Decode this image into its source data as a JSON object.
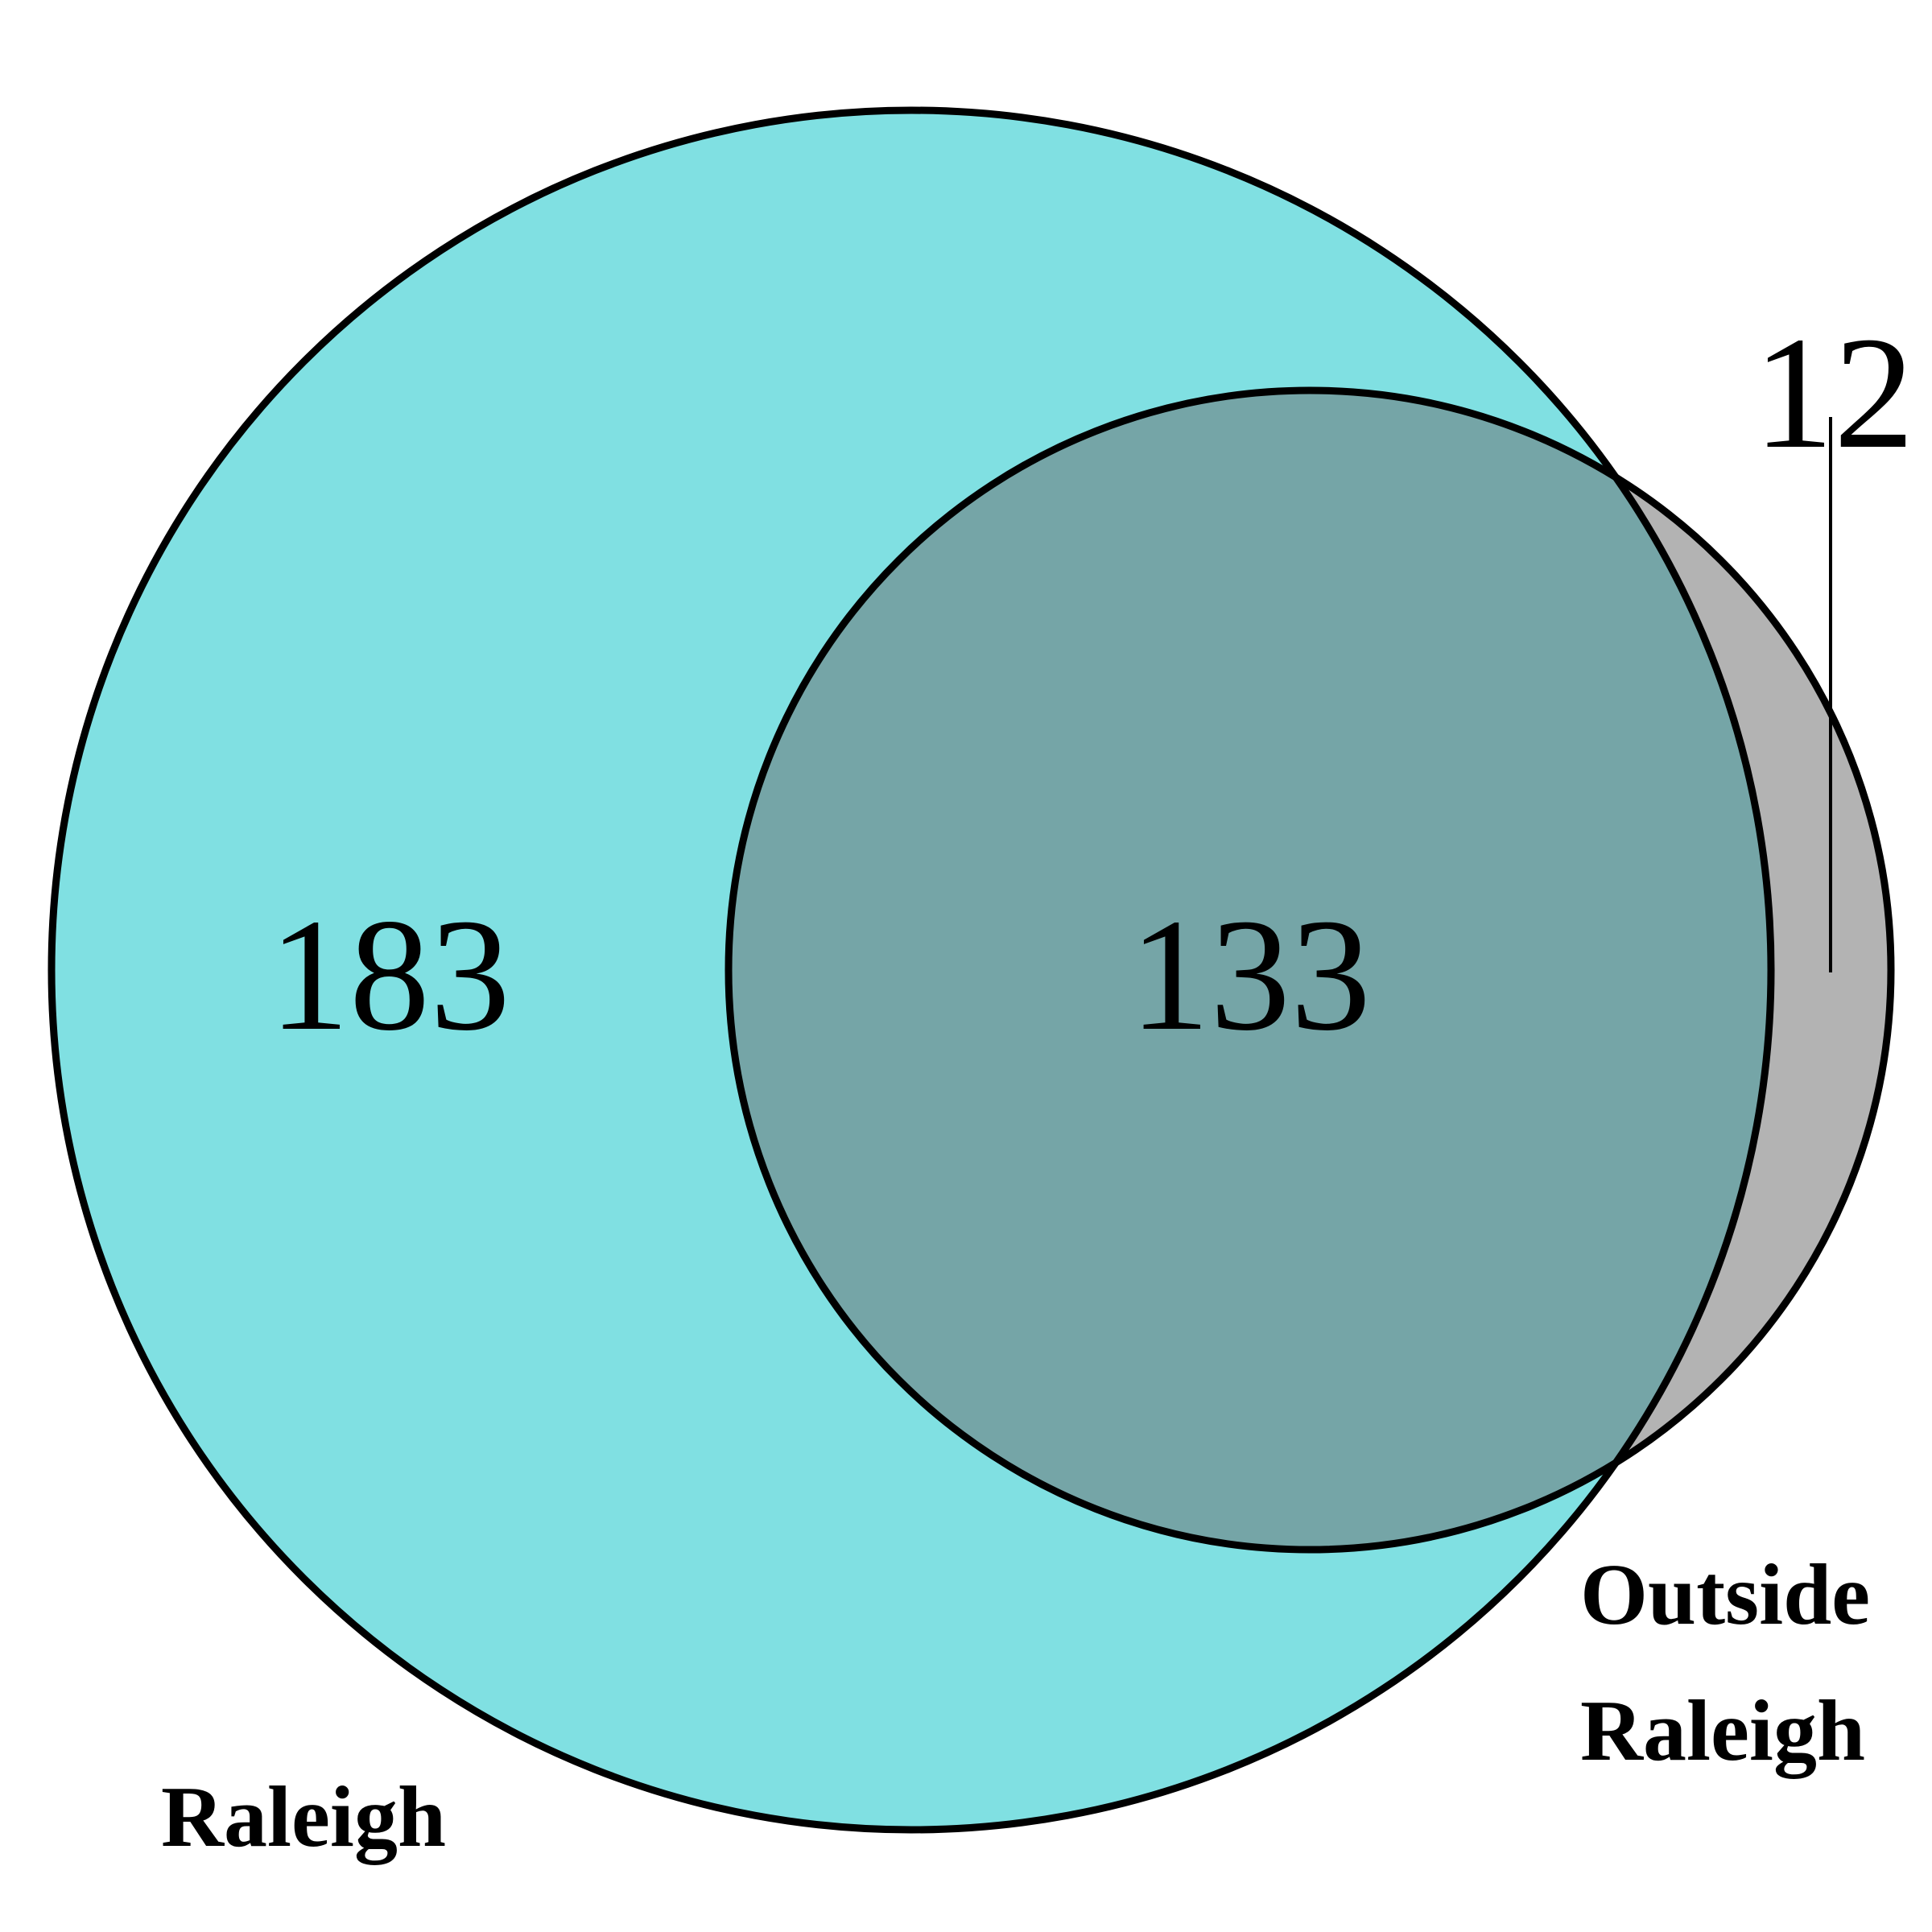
{
  "chart_data": {
    "type": "venn",
    "sets": [
      {
        "label": "Raleigh",
        "only_count": "183",
        "color": "#80e0e2"
      },
      {
        "label_line1": "Outside",
        "label_line2": "Raleigh",
        "only_count": "12",
        "color": "#b3b3b3"
      }
    ],
    "intersection": {
      "count": "133",
      "color": "#75a5a7"
    },
    "outline_color": "#000000"
  }
}
